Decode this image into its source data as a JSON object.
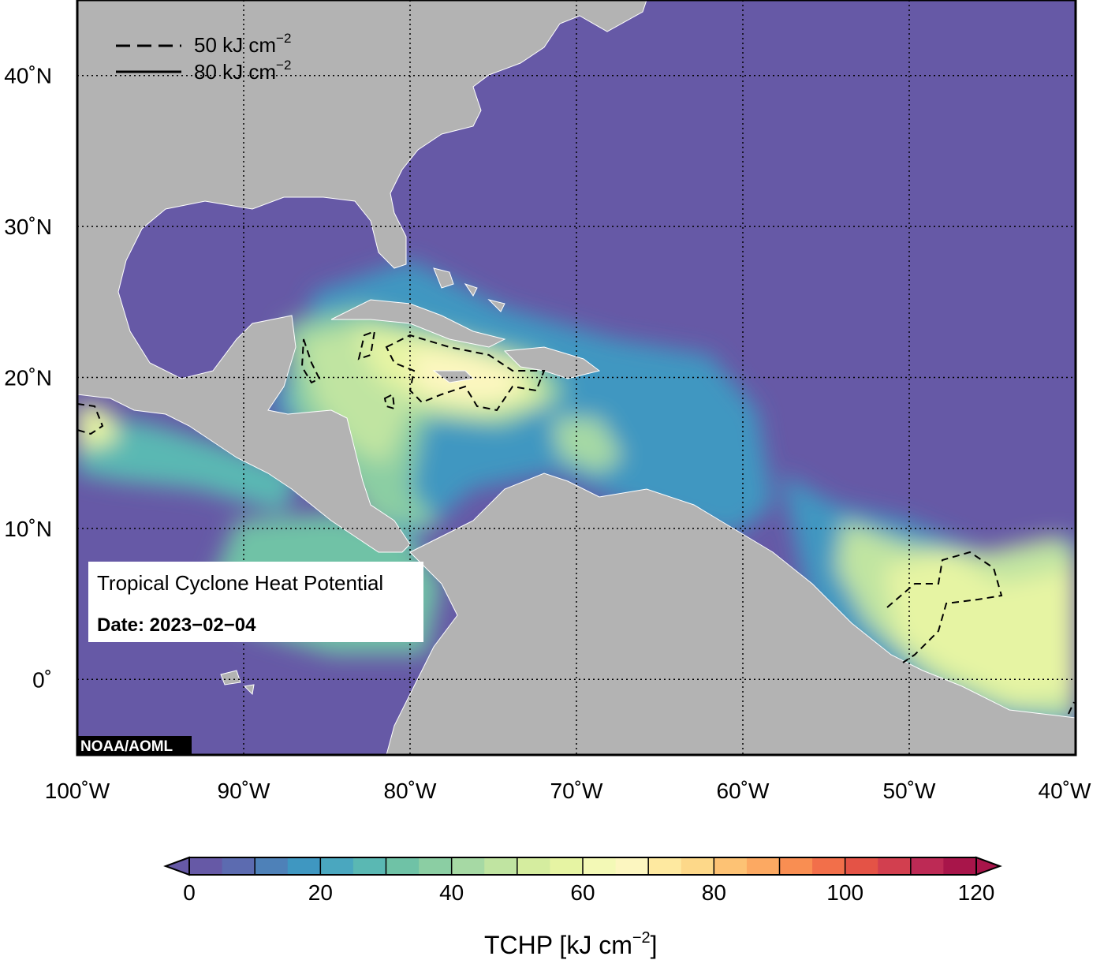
{
  "map": {
    "lon_range": [
      -100,
      -40
    ],
    "lat_range": [
      -5,
      45
    ],
    "lon_ticks": [
      {
        "v": -100,
        "label": "100˚W"
      },
      {
        "v": -90,
        "label": "90˚W"
      },
      {
        "v": -80,
        "label": "80˚W"
      },
      {
        "v": -70,
        "label": "70˚W"
      },
      {
        "v": -60,
        "label": "60˚W"
      },
      {
        "v": -50,
        "label": "50˚W"
      },
      {
        "v": -40,
        "label": "40˚W"
      }
    ],
    "lat_ticks": [
      {
        "v": 0,
        "label": "0˚"
      },
      {
        "v": 10,
        "label": "10˚N"
      },
      {
        "v": 20,
        "label": "20˚N"
      },
      {
        "v": 30,
        "label": "30˚N"
      },
      {
        "v": 40,
        "label": "40˚N"
      }
    ],
    "grid": "dotted",
    "colors": {
      "land": "#b3b3b3",
      "ocean_low": "#6659a6",
      "frame": "#000000"
    }
  },
  "legend": {
    "dashed": {
      "value": "50 kJ cm",
      "exp": "−2"
    },
    "solid": {
      "value": "80 kJ cm",
      "exp": "−2"
    },
    "placement": "top-left"
  },
  "infobox": {
    "title": "Tropical Cyclone Heat Potential",
    "date": "Date: 2023−02−04"
  },
  "credit": "NOAA/AOML",
  "colorbar": {
    "ticks": [
      {
        "v": 0,
        "label": "0"
      },
      {
        "v": 20,
        "label": "20"
      },
      {
        "v": 40,
        "label": "40"
      },
      {
        "v": 60,
        "label": "60"
      },
      {
        "v": 80,
        "label": "80"
      },
      {
        "v": 100,
        "label": "100"
      },
      {
        "v": 120,
        "label": "120"
      }
    ],
    "step": 5,
    "colors": [
      "#6659a6",
      "#5c6bb0",
      "#4e81b8",
      "#3f97c1",
      "#4aa7bf",
      "#5ab8b3",
      "#6fc2a6",
      "#8bcea3",
      "#a6d9a4",
      "#c0e4a1",
      "#d5ed9f",
      "#e6f4a3",
      "#f3f9b6",
      "#fcf6c0",
      "#fee9a0",
      "#fdd889",
      "#fdc274",
      "#fca962",
      "#f98e52",
      "#f26f4a",
      "#e45346",
      "#d23f4f",
      "#bd2a55",
      "#a8154a"
    ],
    "label": "TCHP [kJ cm",
    "label_exp": "−2",
    "label_tail": "]"
  }
}
